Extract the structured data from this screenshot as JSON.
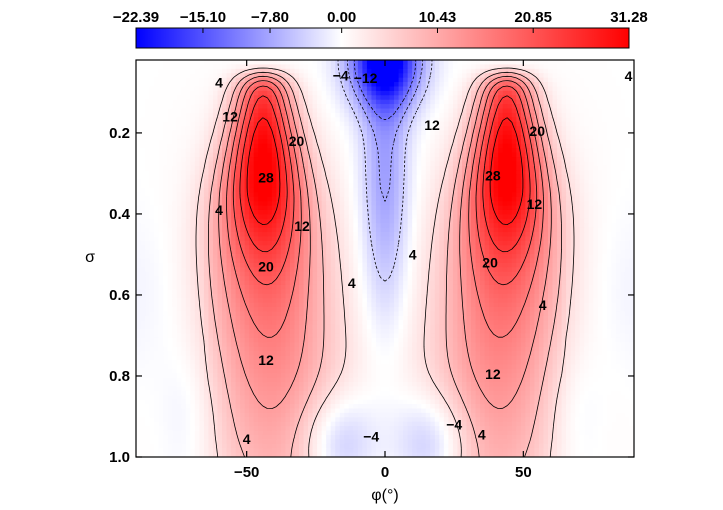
{
  "chart_data": {
    "type": "heatmap",
    "title": "",
    "xlabel": "φ(°)",
    "ylabel": "σ",
    "xlim": [
      -90,
      90
    ],
    "ylim": [
      1.0,
      0.02
    ],
    "x_ticks": [
      -50,
      0,
      50
    ],
    "x_tick_labels": [
      "−50",
      "0",
      "50"
    ],
    "y_ticks": [
      0.2,
      0.4,
      0.6,
      0.8,
      1.0
    ],
    "y_tick_labels": [
      "0.2",
      "0.4",
      "0.6",
      "0.8",
      "1.0"
    ],
    "colorbar": {
      "min": -22.39,
      "max": 31.28,
      "tick_values": [
        -22.39,
        -15.1,
        -7.8,
        0.0,
        10.43,
        20.85,
        31.28
      ],
      "tick_labels": [
        "−22.39",
        "−15.10",
        "−7.80",
        "0.00",
        "10.43",
        "20.85",
        "31.28"
      ],
      "neg_color": "#0000ff",
      "zero_color": "#ffffff",
      "pos_color": "#ff0000"
    },
    "contour_levels": [
      -12,
      -8,
      -4,
      4,
      8,
      12,
      16,
      20,
      24,
      28
    ],
    "features": [
      {
        "name": "southern jet maximum",
        "x": -44,
        "y": 0.25,
        "value": 31.3
      },
      {
        "name": "northern jet maximum",
        "x": 44,
        "y": 0.26,
        "value": 31.3
      },
      {
        "name": "equatorial upper easterlies minimum",
        "x": -1,
        "y": 0.02,
        "value": -22.4
      },
      {
        "name": "southern surface easterlies",
        "x": -17,
        "y": 0.96,
        "value": -8
      },
      {
        "name": "northern surface easterlies",
        "x": 17,
        "y": 0.96,
        "value": -8
      },
      {
        "name": "southern polar easterlies",
        "x": -70,
        "y": 0.9,
        "value": -3
      },
      {
        "name": "northern polar easterlies",
        "x": 68,
        "y": 0.9,
        "value": -3
      }
    ],
    "contour_labels": [
      {
        "text": "4",
        "x": -60,
        "y": 0.075
      },
      {
        "text": "12",
        "x": -56,
        "y": 0.16
      },
      {
        "text": "28",
        "x": -43,
        "y": 0.31
      },
      {
        "text": "20",
        "x": -32,
        "y": 0.22
      },
      {
        "text": "4",
        "x": -60,
        "y": 0.39
      },
      {
        "text": "12",
        "x": -30,
        "y": 0.43
      },
      {
        "text": "20",
        "x": -43,
        "y": 0.53
      },
      {
        "text": "4",
        "x": -12,
        "y": 0.57
      },
      {
        "text": "12",
        "x": -43,
        "y": 0.76
      },
      {
        "text": "4",
        "x": -50,
        "y": 0.955
      },
      {
        "text": "−4",
        "x": -16,
        "y": 0.058
      },
      {
        "text": "−12",
        "x": -7,
        "y": 0.065
      },
      {
        "text": "−4",
        "x": -5,
        "y": 0.95
      },
      {
        "text": "−4",
        "x": 25,
        "y": 0.92
      },
      {
        "text": "4",
        "x": 88,
        "y": 0.06
      },
      {
        "text": "12",
        "x": 17,
        "y": 0.18
      },
      {
        "text": "28",
        "x": 39,
        "y": 0.305
      },
      {
        "text": "20",
        "x": 55,
        "y": 0.195
      },
      {
        "text": "12",
        "x": 54,
        "y": 0.375
      },
      {
        "text": "4",
        "x": 10,
        "y": 0.5
      },
      {
        "text": "20",
        "x": 38,
        "y": 0.52
      },
      {
        "text": "4",
        "x": 57,
        "y": 0.625
      },
      {
        "text": "12",
        "x": 39,
        "y": 0.795
      },
      {
        "text": "4",
        "x": 35,
        "y": 0.945
      }
    ]
  }
}
